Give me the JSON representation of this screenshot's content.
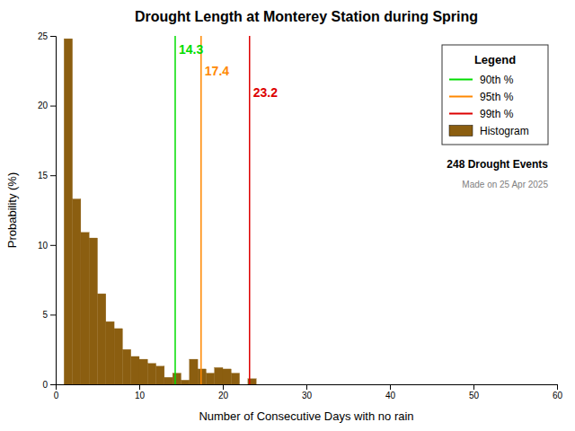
{
  "chart_data": {
    "type": "histogram",
    "title": "Drought Length at Monterey Station during Spring",
    "x_label": "Number of Consecutive Days with no rain",
    "y_label": "Probability (%)",
    "xlim": [
      0,
      60
    ],
    "ylim": [
      0,
      25
    ],
    "xticks": [
      0,
      10,
      20,
      30,
      40,
      50,
      60
    ],
    "yticks": [
      0,
      5,
      10,
      15,
      20,
      25
    ],
    "grid": false,
    "legend": "upper right",
    "legend_title": "Legend",
    "annotations": [
      "248 Drought Events",
      "Made on 25 Apr 2025"
    ],
    "bins": [
      1,
      2,
      3,
      4,
      5,
      6,
      7,
      8,
      9,
      10,
      11,
      12,
      13,
      14,
      15,
      16,
      17,
      18,
      19,
      20,
      21,
      22,
      23,
      24,
      25,
      26,
      27,
      28,
      29,
      30,
      31,
      32,
      33,
      34,
      35,
      36,
      37,
      38,
      39,
      40,
      41,
      42,
      43,
      44,
      45,
      46,
      47,
      48,
      49,
      50,
      51,
      52,
      53,
      54,
      55,
      56,
      57,
      58,
      59,
      60
    ],
    "series": [
      {
        "name": "90th %",
        "type": "vline",
        "color": "#00dd00",
        "values": [
          14.3
        ],
        "data_labels": true
      },
      {
        "name": "95th %",
        "type": "vline",
        "color": "#ff8800",
        "values": [
          17.4
        ],
        "data_labels": true
      },
      {
        "name": "99th %",
        "type": "vline",
        "color": "#dd0000",
        "values": [
          23.2
        ],
        "data_labels": true
      },
      {
        "name": "Histogram",
        "type": "histogram",
        "color": "#8B5E10",
        "values": [
          24.8,
          13.3,
          10.9,
          10.5,
          6.5,
          4.5,
          4.0,
          2.5,
          2.0,
          1.8,
          1.5,
          1.3,
          0.5,
          0.8,
          0.3,
          1.8,
          1.1,
          0.8,
          1.2,
          1.1,
          0.8,
          0.0,
          0.4,
          0.0,
          0.0,
          0.0,
          0.0,
          0.0,
          0.0,
          0.0,
          0.0,
          0.0,
          0.0,
          0.0,
          0.0,
          0.0,
          0.0,
          0.0,
          0.0,
          0.0,
          0.0,
          0.0,
          0.0,
          0.0,
          0.0,
          0.0,
          0.0,
          0.0,
          0.0,
          0.0,
          0.0,
          0.0,
          0.0,
          0.0,
          0.0,
          0.0,
          0.0,
          0.0,
          0.0
        ]
      }
    ]
  }
}
